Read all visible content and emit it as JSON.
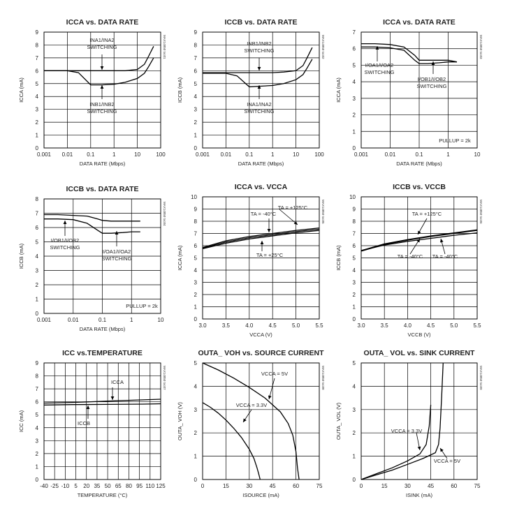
{
  "charts": [
    {
      "id": "icca-rate",
      "title": "I<sub>CCA</sub> vs. DATA RATE",
      "title_text": "ICCA vs. DATA RATE",
      "xlabel": "DATA RATE (Mbps)",
      "ylabel": "ICCA (mA)",
      "side": "MAX14850 toc01",
      "xlog": true,
      "xlim": [
        0.001,
        100
      ],
      "ylim": [
        0,
        9
      ],
      "xticks": [
        "0.001",
        "0.01",
        "0.1",
        "1",
        "10",
        "100"
      ],
      "yticks": [
        "0",
        "1",
        "2",
        "3",
        "4",
        "5",
        "6",
        "7",
        "8",
        "9"
      ],
      "series": [
        {
          "x": [
            0.001,
            0.003,
            0.01,
            0.03,
            0.1,
            0.3,
            1,
            3,
            10,
            20,
            30,
            50
          ],
          "y": [
            6.0,
            6.0,
            6.0,
            5.85,
            4.9,
            4.9,
            4.95,
            5.1,
            5.4,
            5.8,
            6.3,
            7.0
          ]
        },
        {
          "x": [
            0.001,
            0.01,
            0.1,
            1,
            3,
            10,
            20,
            30,
            50
          ],
          "y": [
            6.0,
            6.0,
            6.0,
            6.0,
            6.0,
            6.1,
            6.5,
            7.1,
            7.9
          ]
        }
      ],
      "annotations": [
        {
          "text": "INA1/INA2",
          "text2": "SWITCHING"
        },
        {
          "text": "INB1/INB2",
          "text2": "SWITCHING"
        }
      ]
    },
    {
      "id": "iccb-rate",
      "title_text": "ICCB vs. DATA RATE",
      "xlabel": "DATA RATE (Mbps)",
      "ylabel": "ICCB (mA)",
      "side": "MAX14850 toc02",
      "xlog": true,
      "xlim": [
        0.001,
        100
      ],
      "ylim": [
        0,
        9
      ],
      "xticks": [
        "0.001",
        "0.01",
        "0.1",
        "1",
        "10",
        "100"
      ],
      "yticks": [
        "0",
        "1",
        "2",
        "3",
        "4",
        "5",
        "6",
        "7",
        "8",
        "9"
      ],
      "series": [
        {
          "x": [
            0.001,
            0.003,
            0.01,
            0.03,
            0.1,
            0.3,
            1,
            3,
            10,
            20,
            30,
            50
          ],
          "y": [
            5.8,
            5.8,
            5.8,
            5.6,
            4.75,
            4.8,
            4.85,
            5.0,
            5.3,
            5.7,
            6.2,
            6.9
          ]
        },
        {
          "x": [
            0.001,
            0.01,
            0.1,
            1,
            3,
            10,
            20,
            30,
            50
          ],
          "y": [
            5.85,
            5.85,
            5.85,
            5.85,
            5.9,
            6.0,
            6.4,
            7.0,
            7.8
          ]
        }
      ],
      "annotations": [
        {
          "text": "INB1/INB2",
          "text2": "SWITCHING"
        },
        {
          "text": "INA1/INA2",
          "text2": "SWITCHING"
        }
      ]
    },
    {
      "id": "icca-rate-pullup",
      "title_text": "ICCA vs. DATA RATE",
      "xlabel": "DATA RATE (Mbps)",
      "ylabel": "ICCA (mA)",
      "side": "MAX14850 toc03",
      "xlog": true,
      "xlim": [
        0.001,
        10
      ],
      "ylim": [
        0,
        7
      ],
      "xticks": [
        "0.001",
        "0.01",
        "0.1",
        "1",
        "10"
      ],
      "yticks": [
        "0",
        "1",
        "2",
        "3",
        "4",
        "5",
        "6",
        "7"
      ],
      "series": [
        {
          "x": [
            0.001,
            0.003,
            0.01,
            0.03,
            0.07,
            0.1,
            0.2,
            0.5,
            1,
            2
          ],
          "y": [
            6.3,
            6.3,
            6.25,
            6.1,
            5.6,
            5.3,
            5.3,
            5.3,
            5.3,
            5.2
          ]
        },
        {
          "x": [
            0.001,
            0.003,
            0.01,
            0.03,
            0.07,
            0.1,
            0.2,
            0.5,
            1,
            2
          ],
          "y": [
            6.1,
            6.1,
            6.05,
            5.9,
            5.3,
            5.1,
            5.1,
            5.15,
            5.2,
            5.2
          ]
        }
      ],
      "annotations": [
        {
          "text": "I/OA1/I/OA2",
          "text2": "SWITCHING"
        },
        {
          "text": "I/OB1/I/OB2",
          "text2": "SWITCHING"
        },
        {
          "text": "PULLUP = 2k"
        }
      ]
    },
    {
      "id": "iccb-rate-pullup",
      "title_text": "ICCB vs. DATA RATE",
      "xlabel": "DATA RATE (Mbps)",
      "ylabel": "ICCB (mA)",
      "side": "MAX14850 toc04",
      "xlog": true,
      "xlim": [
        0.001,
        10
      ],
      "ylim": [
        0,
        8
      ],
      "xticks": [
        "0.001",
        "0.01",
        "0.1",
        "1",
        "10"
      ],
      "yticks": [
        "0",
        "1",
        "2",
        "3",
        "4",
        "5",
        "6",
        "7",
        "8"
      ],
      "series": [
        {
          "x": [
            0.001,
            0.003,
            0.01,
            0.03,
            0.07,
            0.1,
            0.2,
            0.5,
            1,
            2
          ],
          "y": [
            6.9,
            6.9,
            6.85,
            6.8,
            6.6,
            6.5,
            6.45,
            6.45,
            6.45,
            6.45
          ]
        },
        {
          "x": [
            0.001,
            0.003,
            0.01,
            0.03,
            0.07,
            0.1,
            0.2,
            0.5,
            1,
            2
          ],
          "y": [
            6.6,
            6.6,
            6.55,
            6.3,
            5.8,
            5.6,
            5.6,
            5.65,
            5.7,
            5.7
          ]
        }
      ],
      "annotations": [
        {
          "text": "I/OB1/I/OB2",
          "text2": "SWITCHING"
        },
        {
          "text": "I/OA1/I/OA2",
          "text2": "SWITCHING"
        },
        {
          "text": "PULLUP = 2k"
        }
      ]
    },
    {
      "id": "icca-vcca",
      "title_text": "ICCA vs. VCCA",
      "xlabel": "VCCA (V)",
      "ylabel": "ICCA (mA)",
      "side": "MAX14850 toc05",
      "xlog": false,
      "xlim": [
        3.0,
        5.5
      ],
      "ylim": [
        0,
        10
      ],
      "xticks": [
        "3.0",
        "3.5",
        "4.0",
        "4.5",
        "5.0",
        "5.5"
      ],
      "yticks": [
        "0",
        "1",
        "2",
        "3",
        "4",
        "5",
        "6",
        "7",
        "8",
        "9",
        "10"
      ],
      "series": [
        {
          "x": [
            3.0,
            3.5,
            4.0,
            4.5,
            5.0,
            5.5
          ],
          "y": [
            5.8,
            6.3,
            6.65,
            6.9,
            7.15,
            7.35
          ]
        },
        {
          "x": [
            3.0,
            3.5,
            4.0,
            4.5,
            5.0,
            5.5
          ],
          "y": [
            5.75,
            6.2,
            6.55,
            6.8,
            7.05,
            7.25
          ]
        },
        {
          "x": [
            3.0,
            3.5,
            4.0,
            4.5,
            5.0,
            5.5
          ],
          "y": [
            5.85,
            6.4,
            6.75,
            7.0,
            7.25,
            7.45
          ]
        }
      ],
      "annotations": [
        {
          "text": "TA = -40°C"
        },
        {
          "text": "TA = +125°C"
        },
        {
          "text": "TA = +25°C"
        }
      ]
    },
    {
      "id": "iccb-vccb",
      "title_text": "ICCB vs. VCCB",
      "xlabel": "VCCB (V)",
      "ylabel": "ICCB (mA)",
      "side": "MAX14850 toc06",
      "xlog": false,
      "xlim": [
        3.0,
        5.5
      ],
      "ylim": [
        0,
        10
      ],
      "xticks": [
        "3.0",
        "3.5",
        "4.0",
        "4.5",
        "5.0",
        "5.5"
      ],
      "yticks": [
        "0",
        "1",
        "2",
        "3",
        "4",
        "5",
        "6",
        "7",
        "8",
        "9",
        "10"
      ],
      "series": [
        {
          "x": [
            3.0,
            3.5,
            4.0,
            4.5,
            5.0,
            5.5
          ],
          "y": [
            5.55,
            6.1,
            6.45,
            6.75,
            7.0,
            7.25
          ]
        },
        {
          "x": [
            3.0,
            3.5,
            4.0,
            4.5,
            5.0,
            5.5
          ],
          "y": [
            5.6,
            6.05,
            6.35,
            6.6,
            6.85,
            7.05
          ]
        },
        {
          "x": [
            3.0,
            3.5,
            4.0,
            4.5,
            5.0,
            5.5
          ],
          "y": [
            5.6,
            6.15,
            6.5,
            6.8,
            7.05,
            7.3
          ]
        }
      ],
      "annotations": [
        {
          "text": "TA = +125°C"
        },
        {
          "text": "TA = -40°C"
        },
        {
          "text": "TA = -40°C"
        }
      ]
    },
    {
      "id": "icc-temp",
      "title_text": "ICC vs.TEMPERATURE",
      "xlabel": "TEMPERATURE (°C)",
      "ylabel": "ICC (mA)",
      "side": "MAX14850 toc07",
      "xlog": false,
      "xlim": [
        -40,
        125
      ],
      "ylim": [
        0,
        9
      ],
      "xticks": [
        "-40",
        "-25",
        "-10",
        "5",
        "20",
        "35",
        "50",
        "65",
        "80",
        "95",
        "110",
        "125"
      ],
      "yticks": [
        "0",
        "1",
        "2",
        "3",
        "4",
        "5",
        "6",
        "7",
        "8",
        "9"
      ],
      "series": [
        {
          "x": [
            -40,
            0,
            50,
            100,
            125
          ],
          "y": [
            5.9,
            5.95,
            6.05,
            6.15,
            6.2
          ]
        },
        {
          "x": [
            -40,
            0,
            50,
            100,
            125
          ],
          "y": [
            5.75,
            5.78,
            5.8,
            5.82,
            5.85
          ]
        }
      ],
      "annotations": [
        {
          "text": "ICCA"
        },
        {
          "text": "ICCB"
        }
      ]
    },
    {
      "id": "voh-source",
      "title_text": "OUTA_ VOH vs. SOURCE CURRENT",
      "xlabel": "ISOURCE (mA)",
      "ylabel": "OUTA_ VOH (V)",
      "side": "MAX14850 toc08",
      "xlog": false,
      "xlim": [
        0,
        75
      ],
      "ylim": [
        0,
        5
      ],
      "xticks": [
        "0",
        "15",
        "30",
        "45",
        "60",
        "75"
      ],
      "yticks": [
        "0",
        "1",
        "2",
        "3",
        "4",
        "5"
      ],
      "series": [
        {
          "x": [
            0,
            10,
            20,
            30,
            40,
            50,
            55,
            58,
            60,
            61,
            62
          ],
          "y": [
            5.0,
            4.7,
            4.35,
            3.95,
            3.5,
            2.9,
            2.4,
            1.9,
            1.2,
            0.5,
            0.0
          ]
        },
        {
          "x": [
            0,
            5,
            10,
            15,
            20,
            25,
            30,
            33,
            35,
            36,
            37
          ],
          "y": [
            3.3,
            3.1,
            2.85,
            2.55,
            2.2,
            1.8,
            1.3,
            0.9,
            0.5,
            0.25,
            0.0
          ]
        }
      ],
      "annotations": [
        {
          "text": "VCCA = 5V"
        },
        {
          "text": "VCCA = 3.3V"
        }
      ]
    },
    {
      "id": "vol-sink",
      "title_text": "OUTA_ VOL vs. SINK CURRENT",
      "xlabel": "ISINK (mA)",
      "ylabel": "OUTA_ VOL (V)",
      "side": "MAX14850 toc09",
      "xlog": false,
      "xlim": [
        0,
        75
      ],
      "ylim": [
        0,
        5
      ],
      "xticks": [
        "0",
        "15",
        "30",
        "45",
        "60",
        "75"
      ],
      "yticks": [
        "0",
        "1",
        "2",
        "3",
        "4",
        "5"
      ],
      "series": [
        {
          "x": [
            0,
            10,
            20,
            30,
            38,
            42,
            44,
            45
          ],
          "y": [
            0.0,
            0.25,
            0.5,
            0.8,
            1.1,
            1.5,
            2.3,
            3.2
          ]
        },
        {
          "x": [
            0,
            10,
            20,
            30,
            40,
            48,
            50,
            51,
            52,
            53
          ],
          "y": [
            0.0,
            0.2,
            0.4,
            0.65,
            0.9,
            1.15,
            1.5,
            2.2,
            3.5,
            5.0
          ]
        }
      ],
      "annotations": [
        {
          "text": "VCCA = 3.3V"
        },
        {
          "text": "VCCA = 5V"
        }
      ]
    }
  ]
}
